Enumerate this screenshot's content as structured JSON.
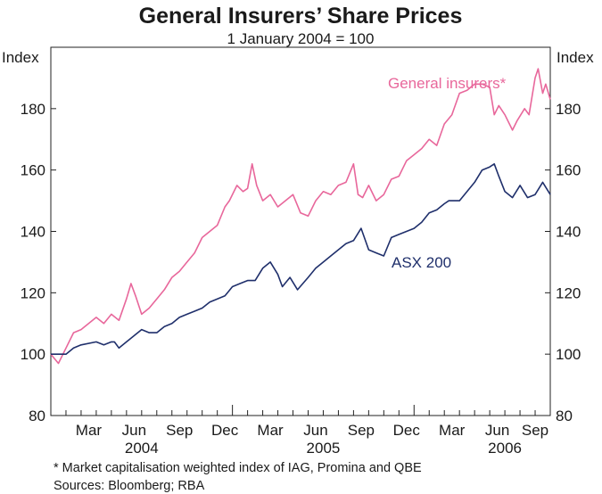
{
  "chart_data": {
    "type": "line",
    "title": "General Insurers’ Share Prices",
    "subtitle": "1 January 2004 = 100",
    "ylabel_left": "Index",
    "ylabel_right": "Index",
    "ylim": [
      80,
      200
    ],
    "yticks": [
      80,
      100,
      120,
      140,
      160,
      180
    ],
    "x_unit": "months since 1 Jan 2004",
    "xlim": [
      0,
      33
    ],
    "month_ticks": [
      {
        "m": 2.5,
        "label": "Mar"
      },
      {
        "m": 5.5,
        "label": "Jun"
      },
      {
        "m": 8.5,
        "label": "Sep"
      },
      {
        "m": 11.5,
        "label": "Dec"
      },
      {
        "m": 14.5,
        "label": "Mar"
      },
      {
        "m": 17.5,
        "label": "Jun"
      },
      {
        "m": 20.5,
        "label": "Sep"
      },
      {
        "m": 23.5,
        "label": "Dec"
      },
      {
        "m": 26.5,
        "label": "Mar"
      },
      {
        "m": 29.5,
        "label": "Jun"
      },
      {
        "m": 32,
        "label": "Sep"
      }
    ],
    "year_labels": [
      {
        "m": 6,
        "label": "2004"
      },
      {
        "m": 18,
        "label": "2005"
      },
      {
        "m": 30,
        "label": "2006"
      }
    ],
    "series": [
      {
        "name": "General insurers*",
        "color": "#e8679b",
        "x": [
          0,
          0.5,
          1,
          1.5,
          2,
          3,
          3.5,
          4,
          4.5,
          5,
          5.3,
          5.6,
          6,
          6.5,
          7,
          7.5,
          8,
          8.5,
          9,
          9.5,
          10,
          10.5,
          11,
          11.5,
          11.8,
          12.3,
          12.7,
          13,
          13.3,
          13.6,
          14,
          14.5,
          15,
          15.5,
          16,
          16.5,
          17,
          17.5,
          18,
          18.5,
          19,
          19.5,
          20,
          20.3,
          20.6,
          21,
          21.5,
          22,
          22.5,
          23,
          23.5,
          24,
          24.5,
          25,
          25.5,
          26,
          26.5,
          27,
          27.5,
          28,
          28.5,
          29,
          29.3,
          29.6,
          30,
          30.5,
          30.8,
          31.3,
          31.6,
          32,
          32.2,
          32.5,
          32.7,
          33
        ],
        "values": [
          100,
          97,
          102,
          107,
          108,
          112,
          110,
          113,
          111,
          118,
          123,
          119,
          113,
          115,
          118,
          121,
          125,
          127,
          130,
          133,
          138,
          140,
          142,
          148,
          150,
          155,
          153,
          154,
          162,
          155,
          150,
          152,
          148,
          150,
          152,
          146,
          145,
          150,
          153,
          152,
          155,
          156,
          162,
          152,
          151,
          155,
          150,
          152,
          157,
          158,
          163,
          165,
          167,
          170,
          168,
          175,
          178,
          185,
          186,
          188,
          188,
          187,
          178,
          181,
          178,
          173,
          176,
          180,
          178,
          190,
          193,
          185,
          188,
          183
        ]
      },
      {
        "name": "ASX 200",
        "color": "#1f2f6b",
        "x": [
          0,
          1,
          1.5,
          2,
          3,
          3.5,
          4,
          4.2,
          4.5,
          5,
          5.5,
          6,
          6.5,
          7,
          7.5,
          8,
          8.5,
          9,
          9.5,
          10,
          10.5,
          11,
          11.5,
          12,
          12.5,
          13,
          13.5,
          14,
          14.5,
          15,
          15.3,
          15.8,
          16.3,
          17,
          17.5,
          18,
          18.5,
          19,
          19.5,
          20,
          20.5,
          21,
          21.5,
          22,
          22.5,
          23,
          23.5,
          24,
          24.5,
          25,
          25.5,
          26,
          26.3,
          27,
          27.5,
          28,
          28.5,
          29,
          29.3,
          29.6,
          30,
          30.5,
          31,
          31.5,
          32,
          32.5,
          33
        ],
        "values": [
          100,
          100,
          102,
          103,
          104,
          103,
          104,
          104,
          102,
          104,
          106,
          108,
          107,
          107,
          109,
          110,
          112,
          113,
          114,
          115,
          117,
          118,
          119,
          122,
          123,
          124,
          124,
          128,
          130,
          126,
          122,
          125,
          121,
          125,
          128,
          130,
          132,
          134,
          136,
          137,
          141,
          134,
          133,
          132,
          138,
          139,
          140,
          141,
          143,
          146,
          147,
          149,
          150,
          150,
          153,
          156,
          160,
          161,
          162,
          158,
          153,
          151,
          155,
          151,
          152,
          156,
          152
        ]
      }
    ]
  },
  "footnote": "*   Market capitalisation weighted index of IAG, Promina and QBE",
  "sources": "Sources: Bloomberg; RBA"
}
